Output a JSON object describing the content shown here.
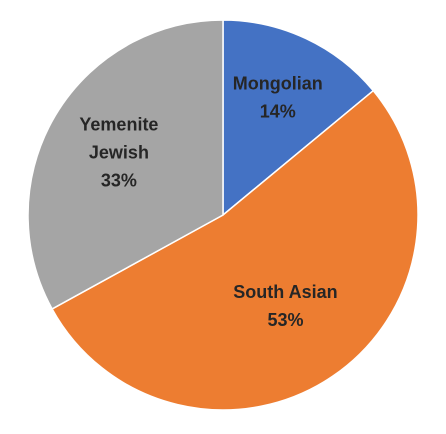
{
  "chart_data": {
    "type": "pie",
    "title": "",
    "start_angle_deg": 0,
    "direction": "clockwise",
    "slices": [
      {
        "label_lines": [
          "Mongolian"
        ],
        "value": 14,
        "value_label": "14%",
        "color": "#4472c4"
      },
      {
        "label_lines": [
          "South Asian"
        ],
        "value": 53,
        "value_label": "53%",
        "color": "#ed7d31"
      },
      {
        "label_lines": [
          "Yemenite",
          "Jewish"
        ],
        "value": 33,
        "value_label": "33%",
        "color": "#a5a5a5"
      }
    ],
    "legend": "none"
  }
}
